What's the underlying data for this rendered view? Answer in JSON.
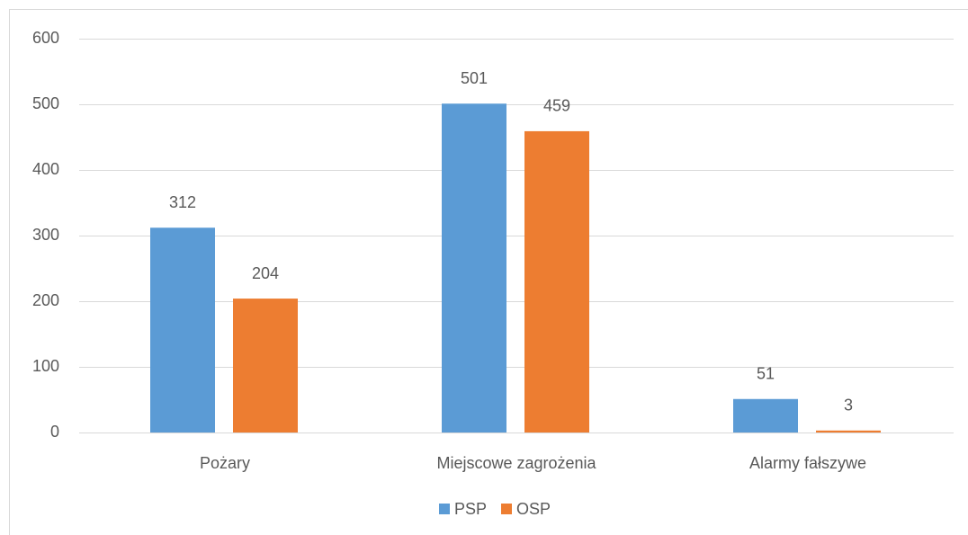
{
  "chart_data": {
    "type": "bar",
    "categories": [
      "Pożary",
      "Miejscowe zagrożenia",
      "Alarmy fałszywe"
    ],
    "series": [
      {
        "name": "PSP",
        "color": "#5b9bd5",
        "values": [
          312,
          501,
          51
        ]
      },
      {
        "name": "OSP",
        "color": "#ed7d31",
        "values": [
          204,
          459,
          3
        ]
      }
    ],
    "ylim": [
      0,
      600
    ],
    "yticks": [
      0,
      100,
      200,
      300,
      400,
      500,
      600
    ],
    "grid": true,
    "legend": "bottom"
  }
}
